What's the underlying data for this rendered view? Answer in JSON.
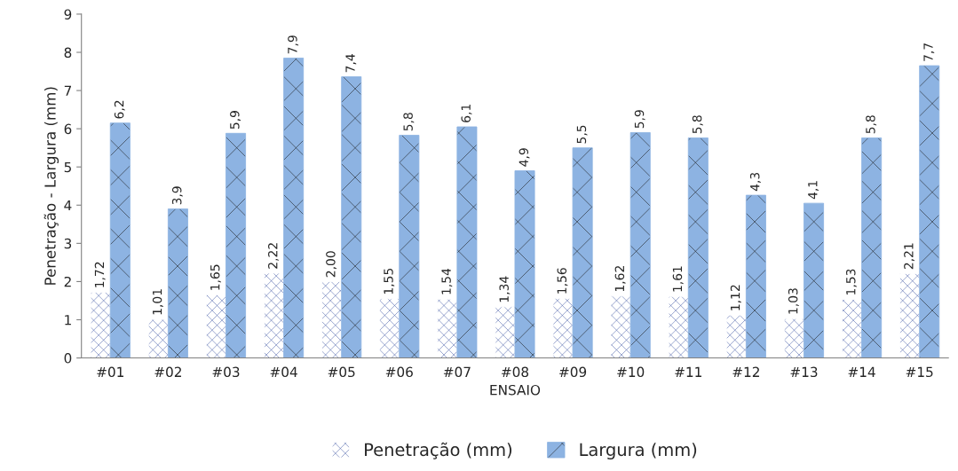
{
  "chart_data": {
    "type": "bar",
    "xlabel": "ENSAIO",
    "ylabel": "Penetração - Largura (mm)",
    "categories": [
      "#01",
      "#02",
      "#03",
      "#04",
      "#05",
      "#06",
      "#07",
      "#08",
      "#09",
      "#10",
      "#11",
      "#12",
      "#13",
      "#14",
      "#15"
    ],
    "series": [
      {
        "name": "Penetração (mm)",
        "color": "#ffffff",
        "values": [
          1.72,
          1.01,
          1.65,
          2.22,
          2.0,
          1.55,
          1.54,
          1.34,
          1.56,
          1.62,
          1.61,
          1.12,
          1.03,
          1.53,
          2.21
        ],
        "value_labels": [
          "1,72",
          "1,01",
          "1,65",
          "2,22",
          "2,00",
          "1,55",
          "1,54",
          "1,34",
          "1,56",
          "1,62",
          "1,61",
          "1,12",
          "1,03",
          "1,53",
          "2,21"
        ]
      },
      {
        "name": "Largura (mm)",
        "color": "#8db3e2",
        "values": [
          6.15,
          3.9,
          5.88,
          7.85,
          7.36,
          5.83,
          6.05,
          4.9,
          5.5,
          5.9,
          5.76,
          4.26,
          4.05,
          5.76,
          7.65
        ],
        "value_labels": [
          "6,2",
          "3,9",
          "5,9",
          "7,9",
          "7,4",
          "5,8",
          "6,1",
          "4,9",
          "5,5",
          "5,9",
          "5,8",
          "4,3",
          "4,1",
          "5,8",
          "7,7"
        ]
      }
    ],
    "ylim": [
      0,
      9
    ],
    "yticks": [
      0,
      1,
      2,
      3,
      4,
      5,
      6,
      7,
      8,
      9
    ],
    "grid": false,
    "legend": "bottom"
  }
}
